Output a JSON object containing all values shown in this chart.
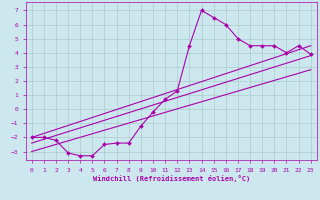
{
  "xlabel": "Windchill (Refroidissement éolien,°C)",
  "background_color": "#cce8ee",
  "line_color": "#aa00aa",
  "grid_color": "#aacccc",
  "xlim": [
    -0.5,
    23.5
  ],
  "ylim": [
    -3.6,
    7.6
  ],
  "xticks": [
    0,
    1,
    2,
    3,
    4,
    5,
    6,
    7,
    8,
    9,
    10,
    11,
    12,
    13,
    14,
    15,
    16,
    17,
    18,
    19,
    20,
    21,
    22,
    23
  ],
  "yticks": [
    -3,
    -2,
    -1,
    0,
    1,
    2,
    3,
    4,
    5,
    6,
    7
  ],
  "scatter_x": [
    0,
    1,
    2,
    3,
    4,
    5,
    6,
    7,
    8,
    9,
    10,
    11,
    12,
    13,
    14,
    15,
    16,
    17,
    18,
    19,
    20,
    21,
    22,
    23
  ],
  "scatter_y": [
    -2.0,
    -2.0,
    -2.2,
    -3.1,
    -3.3,
    -3.3,
    -2.5,
    -2.4,
    -2.4,
    -1.2,
    -0.2,
    0.7,
    1.3,
    4.5,
    7.0,
    6.5,
    6.0,
    5.0,
    4.5,
    4.5,
    4.5,
    4.0,
    4.5,
    3.9
  ],
  "line1_x": [
    0,
    23
  ],
  "line1_y": [
    -2.0,
    4.5
  ],
  "line2_x": [
    0,
    23
  ],
  "line2_y": [
    -2.4,
    3.8
  ],
  "line3_x": [
    0,
    23
  ],
  "line3_y": [
    -3.0,
    2.8
  ],
  "tick_fontsize": 4.5,
  "xlabel_fontsize": 5.0
}
